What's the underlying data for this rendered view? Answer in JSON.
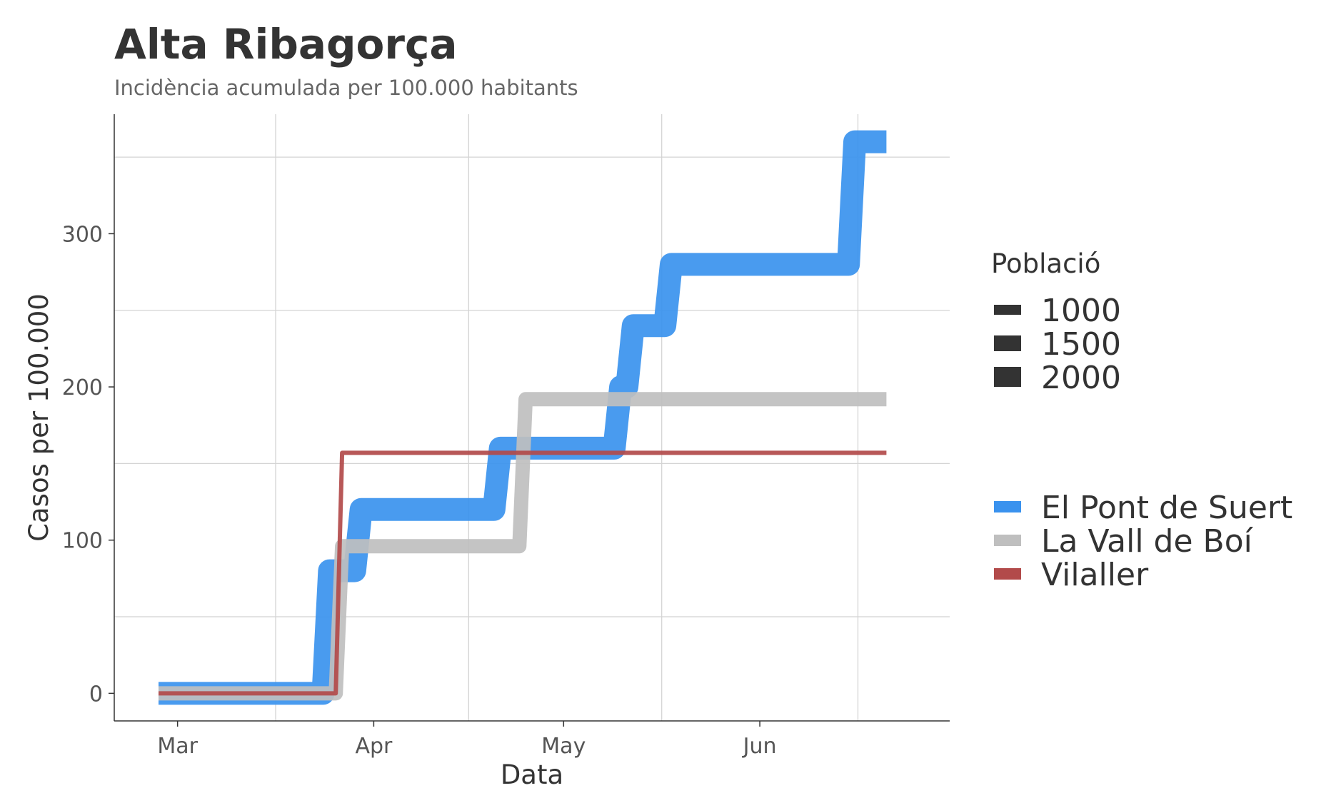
{
  "chart_data": {
    "type": "line",
    "title": "Alta Ribagorça",
    "subtitle": "Incidència acumulada per 100.000 habitants",
    "xlabel": "Data",
    "ylabel": "Casos per 100.000",
    "x_ticks": [
      {
        "label": "Mar",
        "date": "2020-03-01"
      },
      {
        "label": "Apr",
        "date": "2020-04-01"
      },
      {
        "label": "May",
        "date": "2020-05-01"
      },
      {
        "label": "Jun",
        "date": "2020-06-01"
      }
    ],
    "y_ticks": [
      0,
      100,
      200,
      300
    ],
    "xlim": [
      "2020-02-20",
      "2020-07-01"
    ],
    "ylim": [
      -18,
      378
    ],
    "grid": true,
    "legend_size": {
      "title": "Població",
      "items": [
        "1000",
        "1500",
        "2000"
      ]
    },
    "series": [
      {
        "name": "El Pont de Suert",
        "color": "#3a92ee",
        "population_size": 2000,
        "points": [
          [
            "2020-02-27",
            0
          ],
          [
            "2020-03-24",
            0
          ],
          [
            "2020-03-25",
            80
          ],
          [
            "2020-03-29",
            80
          ],
          [
            "2020-03-30",
            120
          ],
          [
            "2020-04-20",
            120
          ],
          [
            "2020-04-21",
            160
          ],
          [
            "2020-05-09",
            160
          ],
          [
            "2020-05-10",
            200
          ],
          [
            "2020-05-11",
            200
          ],
          [
            "2020-05-12",
            240
          ],
          [
            "2020-05-17",
            240
          ],
          [
            "2020-05-18",
            280
          ],
          [
            "2020-06-15",
            280
          ],
          [
            "2020-06-16",
            360
          ],
          [
            "2020-06-21",
            360
          ]
        ]
      },
      {
        "name": "La Vall de Boí",
        "color": "#bfbfbf",
        "population_size": 1000,
        "points": [
          [
            "2020-02-27",
            0
          ],
          [
            "2020-03-26",
            0
          ],
          [
            "2020-03-27",
            96
          ],
          [
            "2020-04-24",
            96
          ],
          [
            "2020-04-25",
            192
          ],
          [
            "2020-06-21",
            192
          ]
        ]
      },
      {
        "name": "Vilaller",
        "color": "#b24a4a",
        "population_size": 500,
        "points": [
          [
            "2020-02-27",
            0
          ],
          [
            "2020-03-26",
            0
          ],
          [
            "2020-03-27",
            157
          ],
          [
            "2020-06-21",
            157
          ]
        ]
      }
    ],
    "legend_position": "right"
  }
}
